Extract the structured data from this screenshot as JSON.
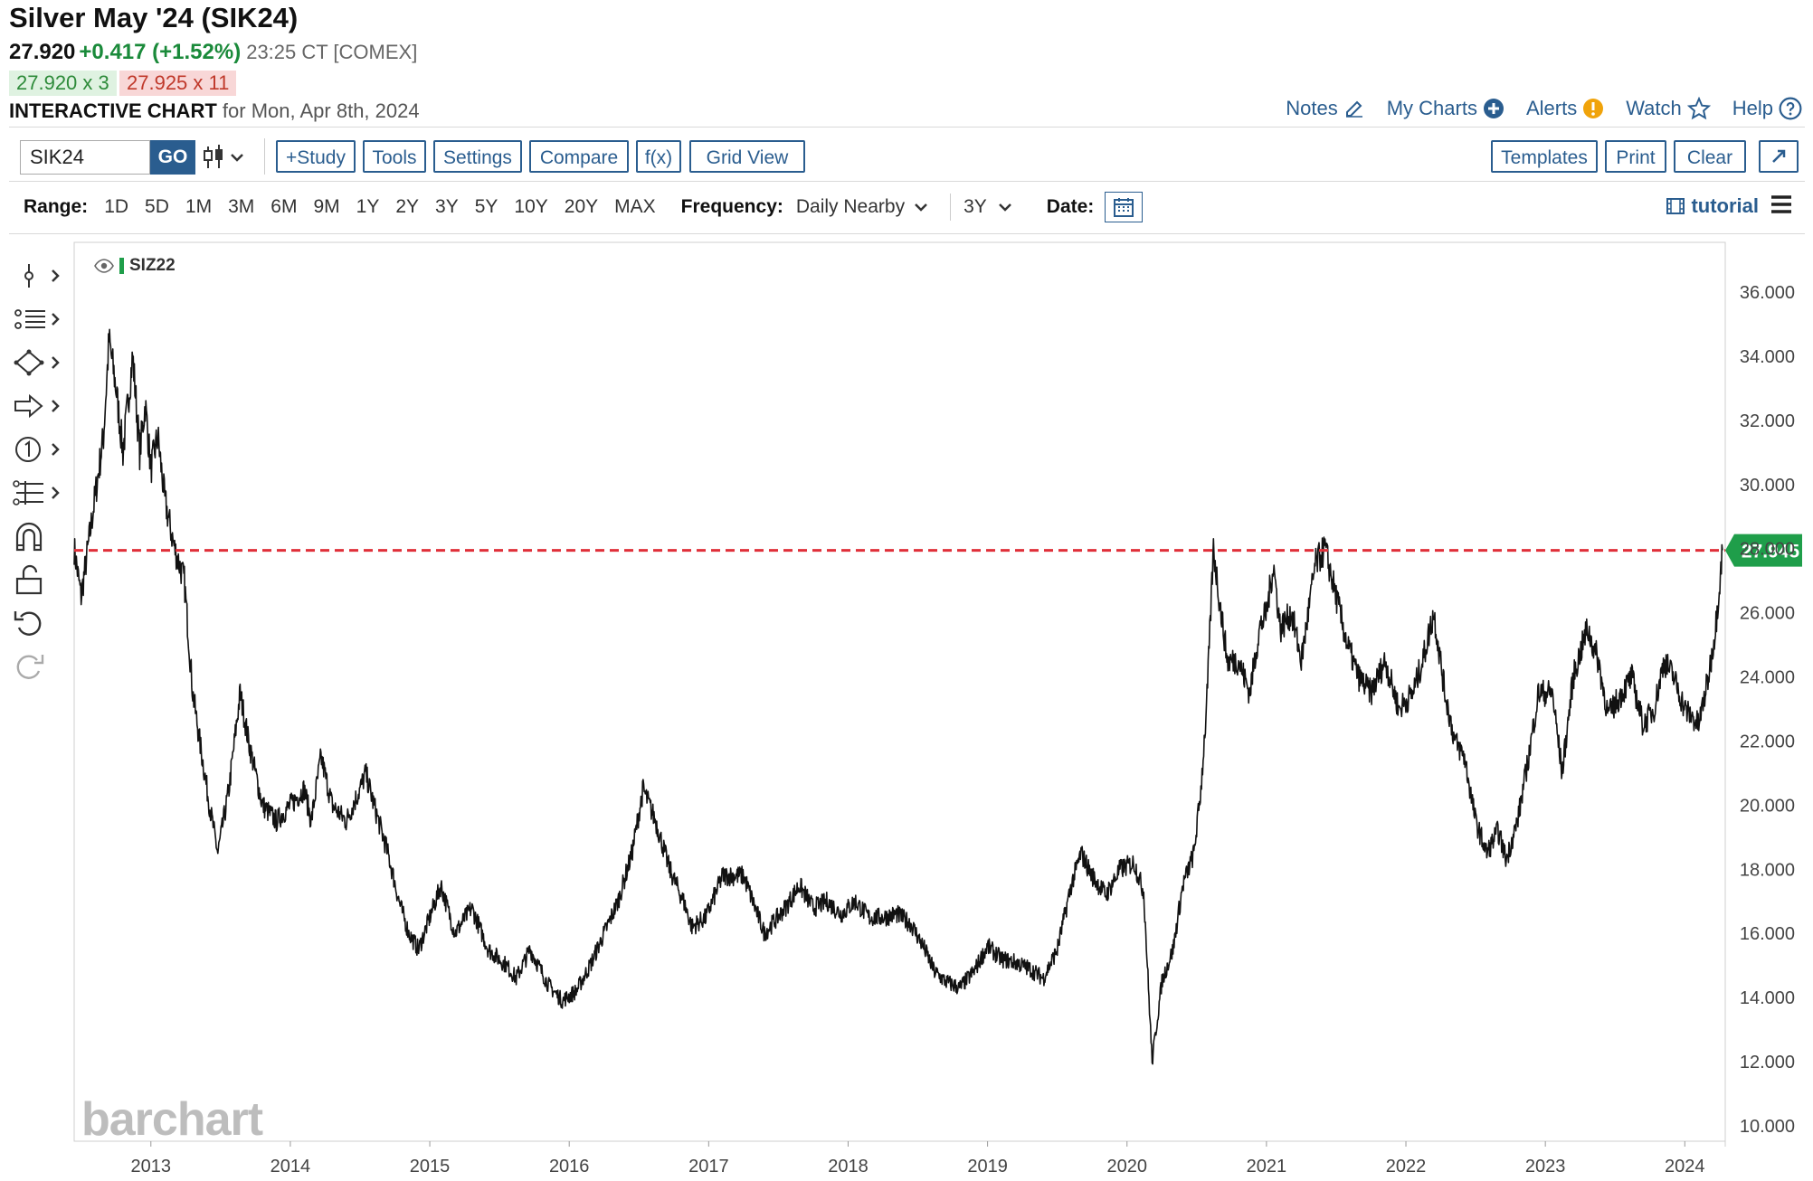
{
  "header": {
    "title": "Silver May '24 (SIK24)",
    "last_price": "27.920",
    "change": "+0.417 (+1.52%)",
    "time_exchange": "23:25 CT [COMEX]",
    "bid": "27.920 x 3",
    "ask": "27.925 x 11",
    "chart_label": "INTERACTIVE CHART",
    "chart_date": "for Mon, Apr 8th, 2024"
  },
  "top_links": {
    "notes": "Notes",
    "my_charts": "My Charts",
    "alerts": "Alerts",
    "watch": "Watch",
    "help": "Help"
  },
  "toolbar": {
    "symbol_value": "SIK24",
    "go": "GO",
    "study": "+Study",
    "tools": "Tools",
    "settings": "Settings",
    "compare": "Compare",
    "fx": "f(x)",
    "grid_view": "Grid View",
    "templates": "Templates",
    "print": "Print",
    "clear": "Clear"
  },
  "range_row": {
    "range_label": "Range:",
    "ranges": [
      "1D",
      "5D",
      "1M",
      "3M",
      "6M",
      "9M",
      "1Y",
      "2Y",
      "3Y",
      "5Y",
      "10Y",
      "20Y",
      "MAX"
    ],
    "frequency_label": "Frequency:",
    "frequency_value": "Daily Nearby",
    "period_value": "3Y",
    "date_label": "Date:",
    "tutorial": "tutorial"
  },
  "chart": {
    "legend_series": "SIZ22",
    "watermark": "barchart",
    "current_price_label": "27.945"
  },
  "colors": {
    "accent": "#2a5d8f",
    "up": "#1a8a3a",
    "price_line": "#e0303a",
    "price_badge": "#1f9e4a"
  },
  "chart_data": {
    "type": "line",
    "ylim": [
      10,
      37
    ],
    "y_ticks": [
      "10.000",
      "12.000",
      "14.000",
      "16.000",
      "18.000",
      "20.000",
      "22.000",
      "24.000",
      "26.000",
      "28.000",
      "30.000",
      "32.000",
      "34.000",
      "36.000"
    ],
    "x_ticks": [
      "2013",
      "2014",
      "2015",
      "2016",
      "2017",
      "2018",
      "2019",
      "2020",
      "2021",
      "2022",
      "2023",
      "2024"
    ],
    "current_price": 27.945,
    "series": [
      {
        "name": "SIZ22",
        "points": [
          [
            2012.45,
            28.0
          ],
          [
            2012.5,
            26.5
          ],
          [
            2012.58,
            29.0
          ],
          [
            2012.66,
            31.5
          ],
          [
            2012.7,
            34.5
          ],
          [
            2012.75,
            33.0
          ],
          [
            2012.8,
            31.0
          ],
          [
            2012.87,
            34.0
          ],
          [
            2012.92,
            31.0
          ],
          [
            2012.96,
            32.5
          ],
          [
            2013.0,
            30.5
          ],
          [
            2013.05,
            31.5
          ],
          [
            2013.1,
            29.5
          ],
          [
            2013.17,
            28.0
          ],
          [
            2013.24,
            27.0
          ],
          [
            2013.3,
            23.5
          ],
          [
            2013.35,
            22.0
          ],
          [
            2013.42,
            20.0
          ],
          [
            2013.48,
            18.5
          ],
          [
            2013.56,
            20.5
          ],
          [
            2013.64,
            23.5
          ],
          [
            2013.7,
            22.0
          ],
          [
            2013.8,
            20.0
          ],
          [
            2013.9,
            19.5
          ],
          [
            2014.0,
            20.0
          ],
          [
            2014.1,
            20.5
          ],
          [
            2014.15,
            19.5
          ],
          [
            2014.22,
            21.5
          ],
          [
            2014.3,
            20.0
          ],
          [
            2014.4,
            19.5
          ],
          [
            2014.5,
            20.5
          ],
          [
            2014.54,
            21.0
          ],
          [
            2014.6,
            20.0
          ],
          [
            2014.7,
            18.5
          ],
          [
            2014.78,
            17.0
          ],
          [
            2014.85,
            16.0
          ],
          [
            2014.92,
            15.5
          ],
          [
            2015.0,
            16.5
          ],
          [
            2015.08,
            17.5
          ],
          [
            2015.18,
            16.0
          ],
          [
            2015.3,
            16.8
          ],
          [
            2015.42,
            15.5
          ],
          [
            2015.55,
            15.0
          ],
          [
            2015.62,
            14.6
          ],
          [
            2015.72,
            15.5
          ],
          [
            2015.85,
            14.4
          ],
          [
            2015.95,
            13.9
          ],
          [
            2016.05,
            14.2
          ],
          [
            2016.15,
            15.0
          ],
          [
            2016.25,
            16.0
          ],
          [
            2016.35,
            17.0
          ],
          [
            2016.45,
            18.5
          ],
          [
            2016.53,
            20.5
          ],
          [
            2016.62,
            19.5
          ],
          [
            2016.72,
            18.0
          ],
          [
            2016.82,
            17.0
          ],
          [
            2016.88,
            16.2
          ],
          [
            2016.98,
            16.5
          ],
          [
            2017.1,
            17.8
          ],
          [
            2017.25,
            17.8
          ],
          [
            2017.4,
            16.0
          ],
          [
            2017.55,
            16.8
          ],
          [
            2017.65,
            17.5
          ],
          [
            2017.75,
            16.8
          ],
          [
            2017.85,
            17.0
          ],
          [
            2017.95,
            16.6
          ],
          [
            2018.05,
            17.0
          ],
          [
            2018.15,
            16.5
          ],
          [
            2018.25,
            16.5
          ],
          [
            2018.35,
            16.6
          ],
          [
            2018.45,
            16.3
          ],
          [
            2018.55,
            15.5
          ],
          [
            2018.62,
            14.8
          ],
          [
            2018.7,
            14.5
          ],
          [
            2018.8,
            14.3
          ],
          [
            2018.9,
            14.8
          ],
          [
            2019.0,
            15.6
          ],
          [
            2019.1,
            15.2
          ],
          [
            2019.2,
            15.1
          ],
          [
            2019.3,
            14.9
          ],
          [
            2019.4,
            14.6
          ],
          [
            2019.5,
            15.5
          ],
          [
            2019.6,
            17.5
          ],
          [
            2019.67,
            18.5
          ],
          [
            2019.75,
            17.8
          ],
          [
            2019.85,
            17.2
          ],
          [
            2019.95,
            18.0
          ],
          [
            2020.05,
            18.2
          ],
          [
            2020.12,
            17.3
          ],
          [
            2020.18,
            12.0
          ],
          [
            2020.25,
            14.5
          ],
          [
            2020.33,
            15.5
          ],
          [
            2020.4,
            17.5
          ],
          [
            2020.48,
            18.5
          ],
          [
            2020.53,
            20.5
          ],
          [
            2020.57,
            23.0
          ],
          [
            2020.62,
            28.0
          ],
          [
            2020.66,
            26.5
          ],
          [
            2020.72,
            24.5
          ],
          [
            2020.8,
            24.5
          ],
          [
            2020.88,
            23.5
          ],
          [
            2020.95,
            25.5
          ],
          [
            2021.0,
            26.0
          ],
          [
            2021.05,
            27.5
          ],
          [
            2021.1,
            25.5
          ],
          [
            2021.18,
            26.0
          ],
          [
            2021.25,
            24.5
          ],
          [
            2021.35,
            27.5
          ],
          [
            2021.42,
            28.0
          ],
          [
            2021.5,
            26.5
          ],
          [
            2021.58,
            25.0
          ],
          [
            2021.66,
            24.0
          ],
          [
            2021.75,
            23.5
          ],
          [
            2021.85,
            24.5
          ],
          [
            2021.95,
            23.0
          ],
          [
            2022.05,
            23.5
          ],
          [
            2022.12,
            24.5
          ],
          [
            2022.2,
            26.0
          ],
          [
            2022.28,
            23.5
          ],
          [
            2022.35,
            22.0
          ],
          [
            2022.42,
            21.5
          ],
          [
            2022.5,
            19.5
          ],
          [
            2022.58,
            18.5
          ],
          [
            2022.66,
            19.2
          ],
          [
            2022.72,
            18.3
          ],
          [
            2022.8,
            19.5
          ],
          [
            2022.88,
            21.5
          ],
          [
            2022.95,
            23.5
          ],
          [
            2023.05,
            23.5
          ],
          [
            2023.12,
            21.0
          ],
          [
            2023.2,
            24.0
          ],
          [
            2023.3,
            25.5
          ],
          [
            2023.38,
            24.5
          ],
          [
            2023.45,
            22.8
          ],
          [
            2023.55,
            23.5
          ],
          [
            2023.62,
            24.0
          ],
          [
            2023.7,
            22.5
          ],
          [
            2023.78,
            23.0
          ],
          [
            2023.85,
            24.5
          ],
          [
            2023.92,
            24.0
          ],
          [
            2024.0,
            23.0
          ],
          [
            2024.1,
            22.5
          ],
          [
            2024.17,
            24.0
          ],
          [
            2024.22,
            25.5
          ],
          [
            2024.27,
            27.945
          ]
        ]
      }
    ]
  }
}
